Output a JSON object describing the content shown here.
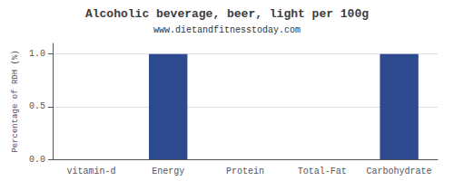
{
  "chart_data": {
    "type": "bar",
    "title": "Alcoholic beverage, beer, light per 100g",
    "subtitle": "www.dietandfitnesstoday.com",
    "categories": [
      "vitamin-d",
      "Energy",
      "Protein",
      "Total-Fat",
      "Carbohydrate"
    ],
    "values": [
      0.0,
      1.0,
      0.0,
      0.0,
      1.0
    ],
    "color": "#2e4a8e",
    "ylabel": "Percentage of RDH (%)",
    "ylim": [
      0,
      1.1
    ],
    "yticks": [
      {
        "value": 0.0,
        "label": "0.0"
      },
      {
        "value": 0.5,
        "label": "0.5"
      },
      {
        "value": 1.0,
        "label": "1.0"
      }
    ],
    "grid": true
  }
}
